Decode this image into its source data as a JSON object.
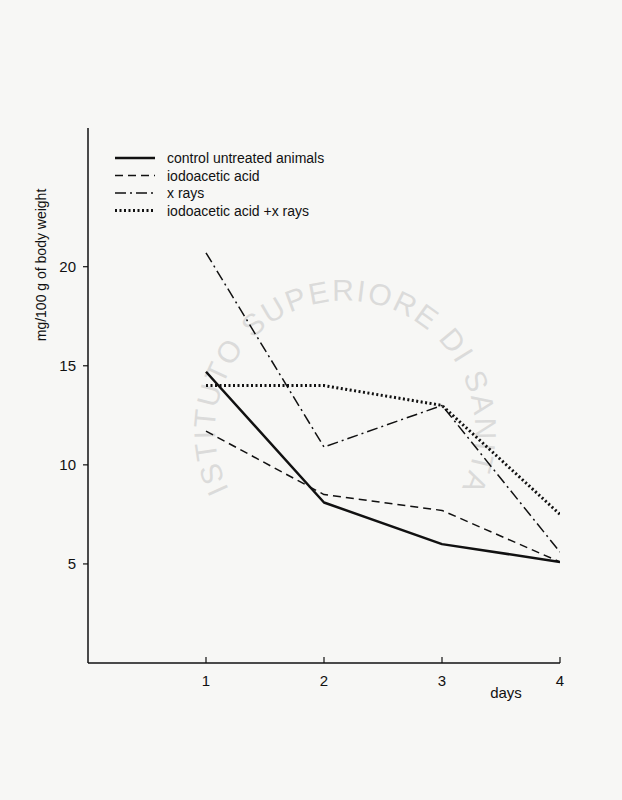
{
  "chart_data": {
    "type": "line",
    "x_label": "days",
    "y_label": "mg/100 g of body weight",
    "x": [
      1,
      2,
      3,
      4
    ],
    "series": [
      {
        "name": "control untreated animals",
        "color": "#111111",
        "line_style": "solid",
        "values": [
          14.7,
          8.1,
          6.0,
          5.1
        ]
      },
      {
        "name": "iodoacetic acid",
        "color": "#111111",
        "line_style": "dashed",
        "values": [
          11.7,
          8.5,
          7.7,
          5.1
        ]
      },
      {
        "name": "x rays",
        "color": "#111111",
        "line_style": "dashdot",
        "values": [
          20.7,
          10.9,
          13.0,
          5.6
        ]
      },
      {
        "name": "iodoacetic acid +x rays",
        "color": "#111111",
        "line_style": "dotted",
        "values": [
          14.0,
          14.0,
          13.0,
          7.5
        ]
      }
    ],
    "xlim": [
      0,
      4
    ],
    "xticks": [
      1,
      2,
      3,
      4
    ],
    "ylim": [
      0,
      27
    ],
    "yticks": [
      5,
      10,
      15,
      20
    ],
    "grid": false,
    "legend": "top-left",
    "annotations": [
      "ISTITUTO SUPERIORE DI SANITA"
    ]
  }
}
